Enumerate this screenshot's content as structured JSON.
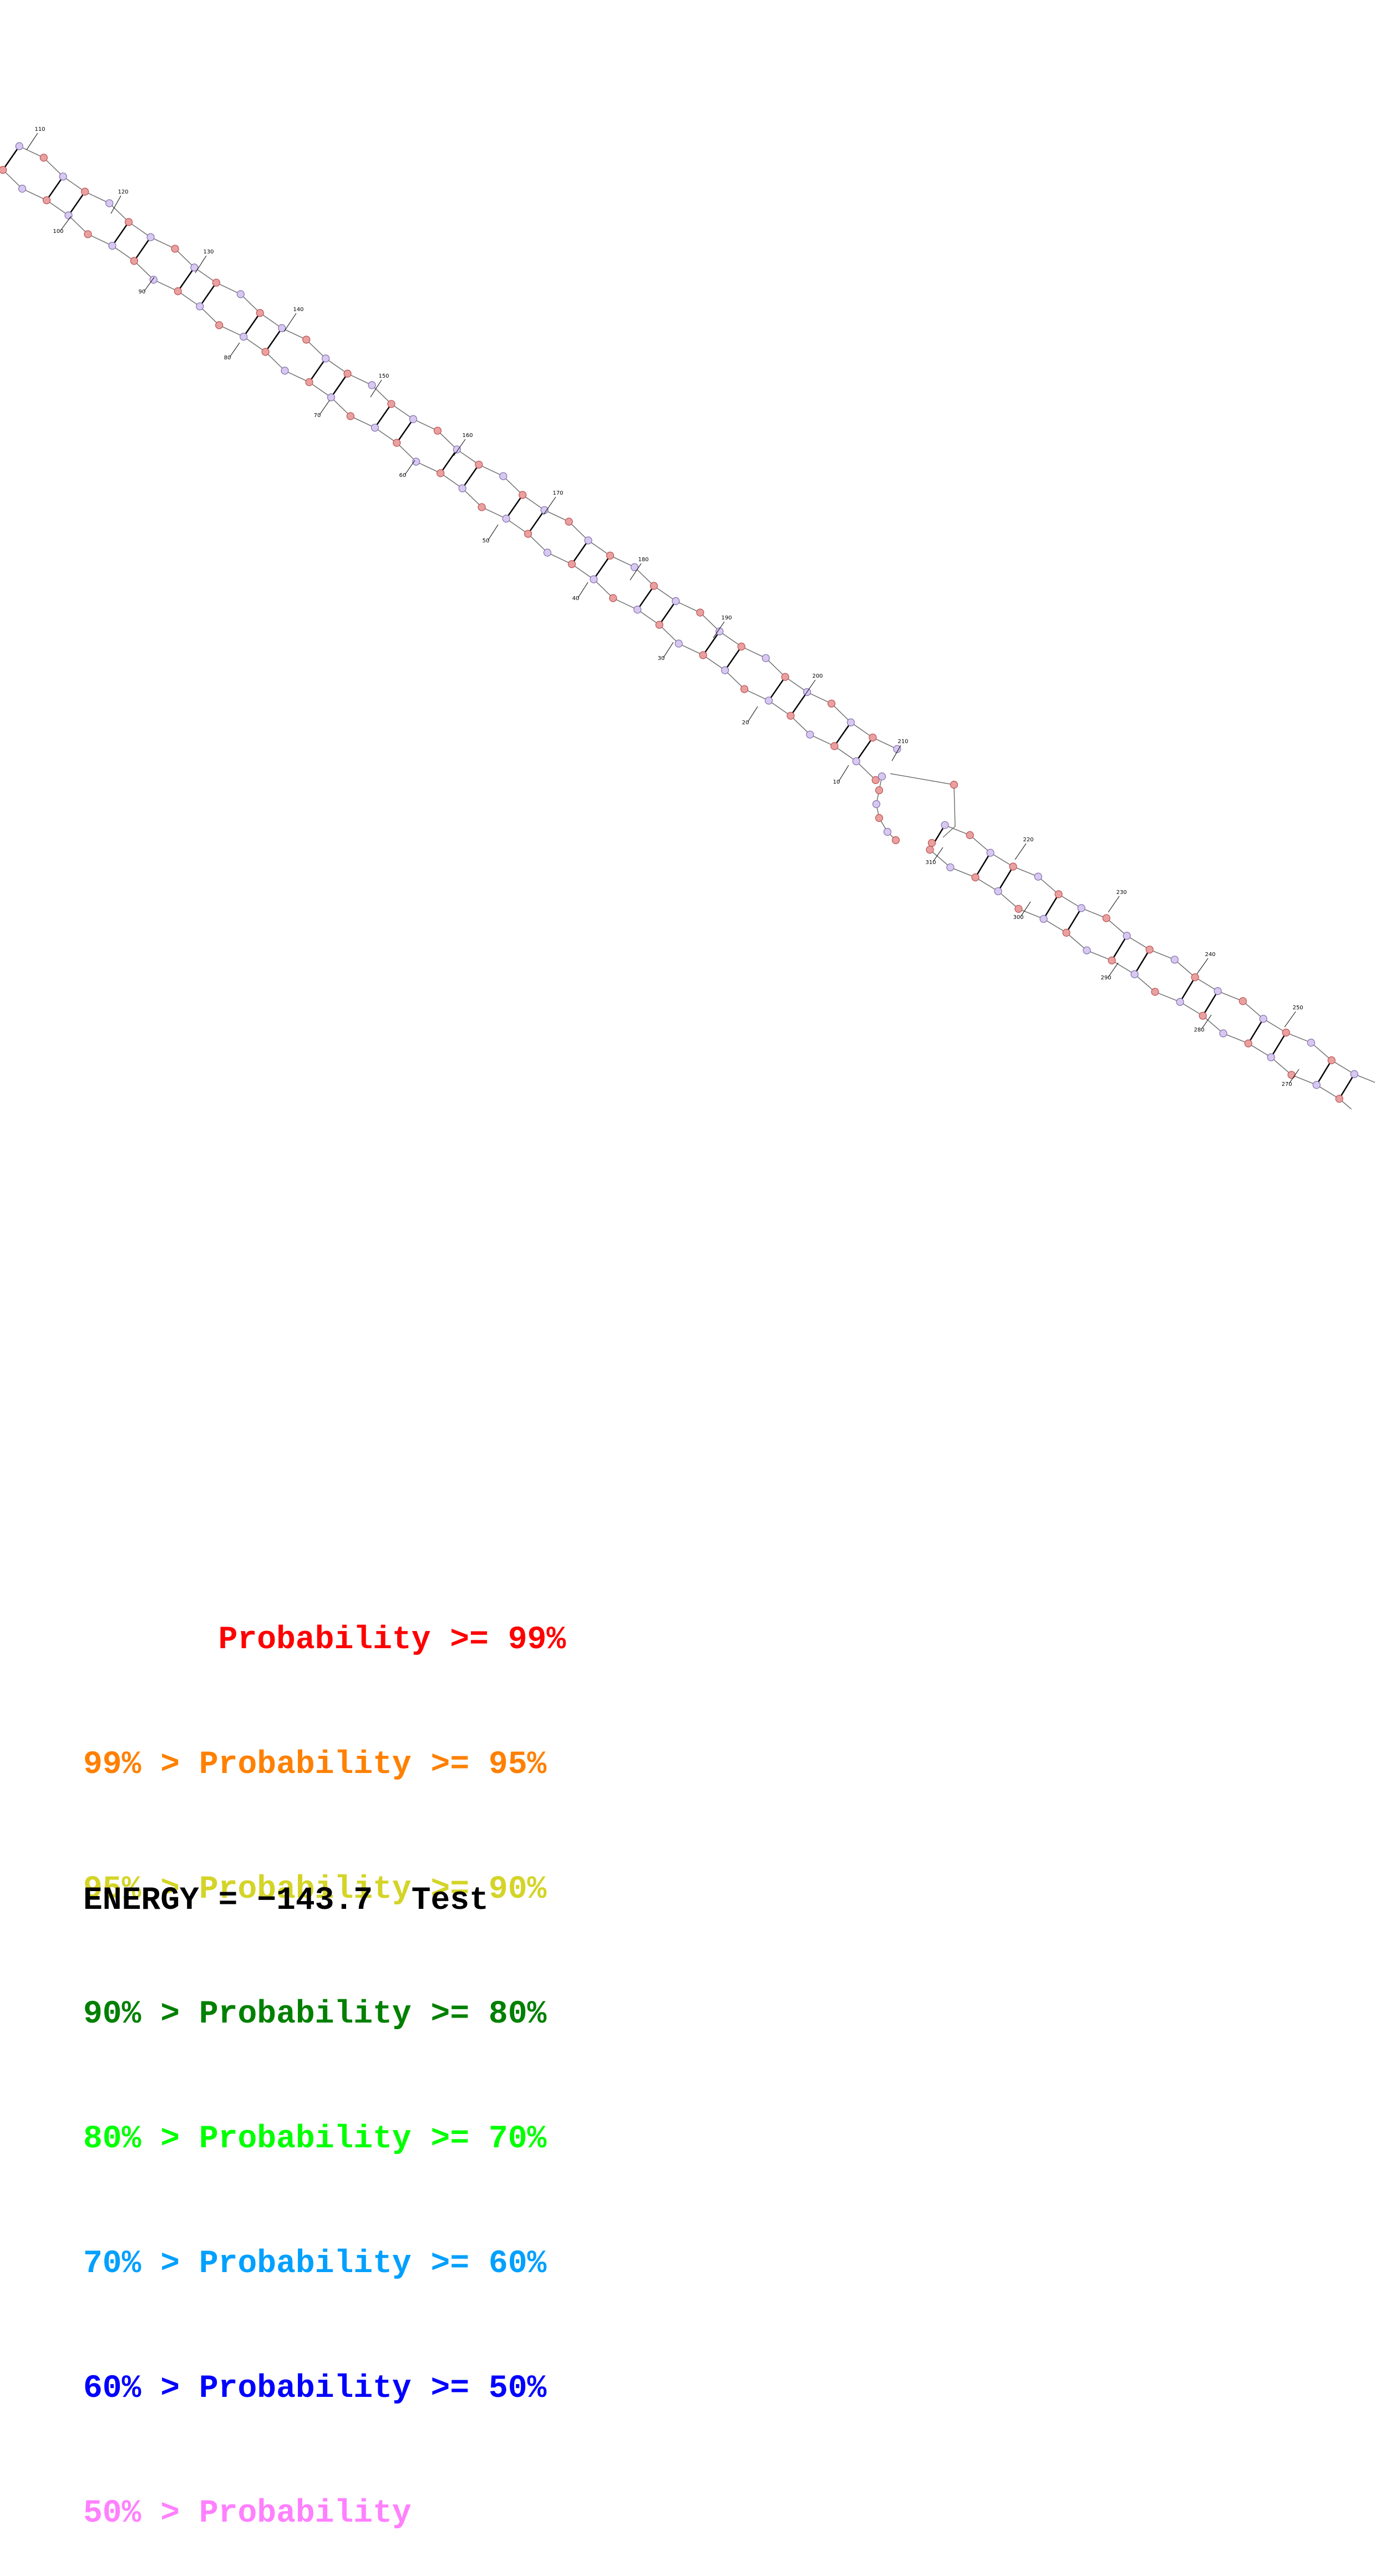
{
  "diagram": {
    "type": "rna-secondary-structure",
    "position_labels": [
      "10",
      "20",
      "30",
      "40",
      "50",
      "60",
      "70",
      "80",
      "90",
      "100",
      "110",
      "120",
      "130",
      "140",
      "150",
      "160",
      "170",
      "180",
      "190",
      "200",
      "210",
      "220",
      "230",
      "240",
      "250",
      "270",
      "280",
      "290",
      "300",
      "310"
    ],
    "colors": {
      "paired_base": "#e8a0a0",
      "paired_base_stroke": "#c05050",
      "unpaired_base": "#d8c8f0",
      "unpaired_base_stroke": "#8070b0",
      "backbone": "#707070",
      "pair_bond": "#000000"
    }
  },
  "legend": [
    {
      "prefix": "       ",
      "label": "Probability >= 99%",
      "color": "#ff0000"
    },
    {
      "prefix": "99% > ",
      "label": "Probability >= 95%",
      "color": "#ff8000"
    },
    {
      "prefix": "95% > ",
      "label": "Probability >= 90%",
      "color": "#d4d428"
    },
    {
      "prefix": "90% > ",
      "label": "Probability >= 80%",
      "color": "#008000"
    },
    {
      "prefix": "80% > ",
      "label": "Probability >= 70%",
      "color": "#00ff00"
    },
    {
      "prefix": "70% > ",
      "label": "Probability >= 60%",
      "color": "#00a0ff"
    },
    {
      "prefix": "60% > ",
      "label": "Probability >= 50%",
      "color": "#0000ff"
    },
    {
      "prefix": "50% > ",
      "label": "Probability",
      "color": "#ff80ff"
    }
  ],
  "energy": {
    "text": "ENERGY = −143.7  Test"
  }
}
